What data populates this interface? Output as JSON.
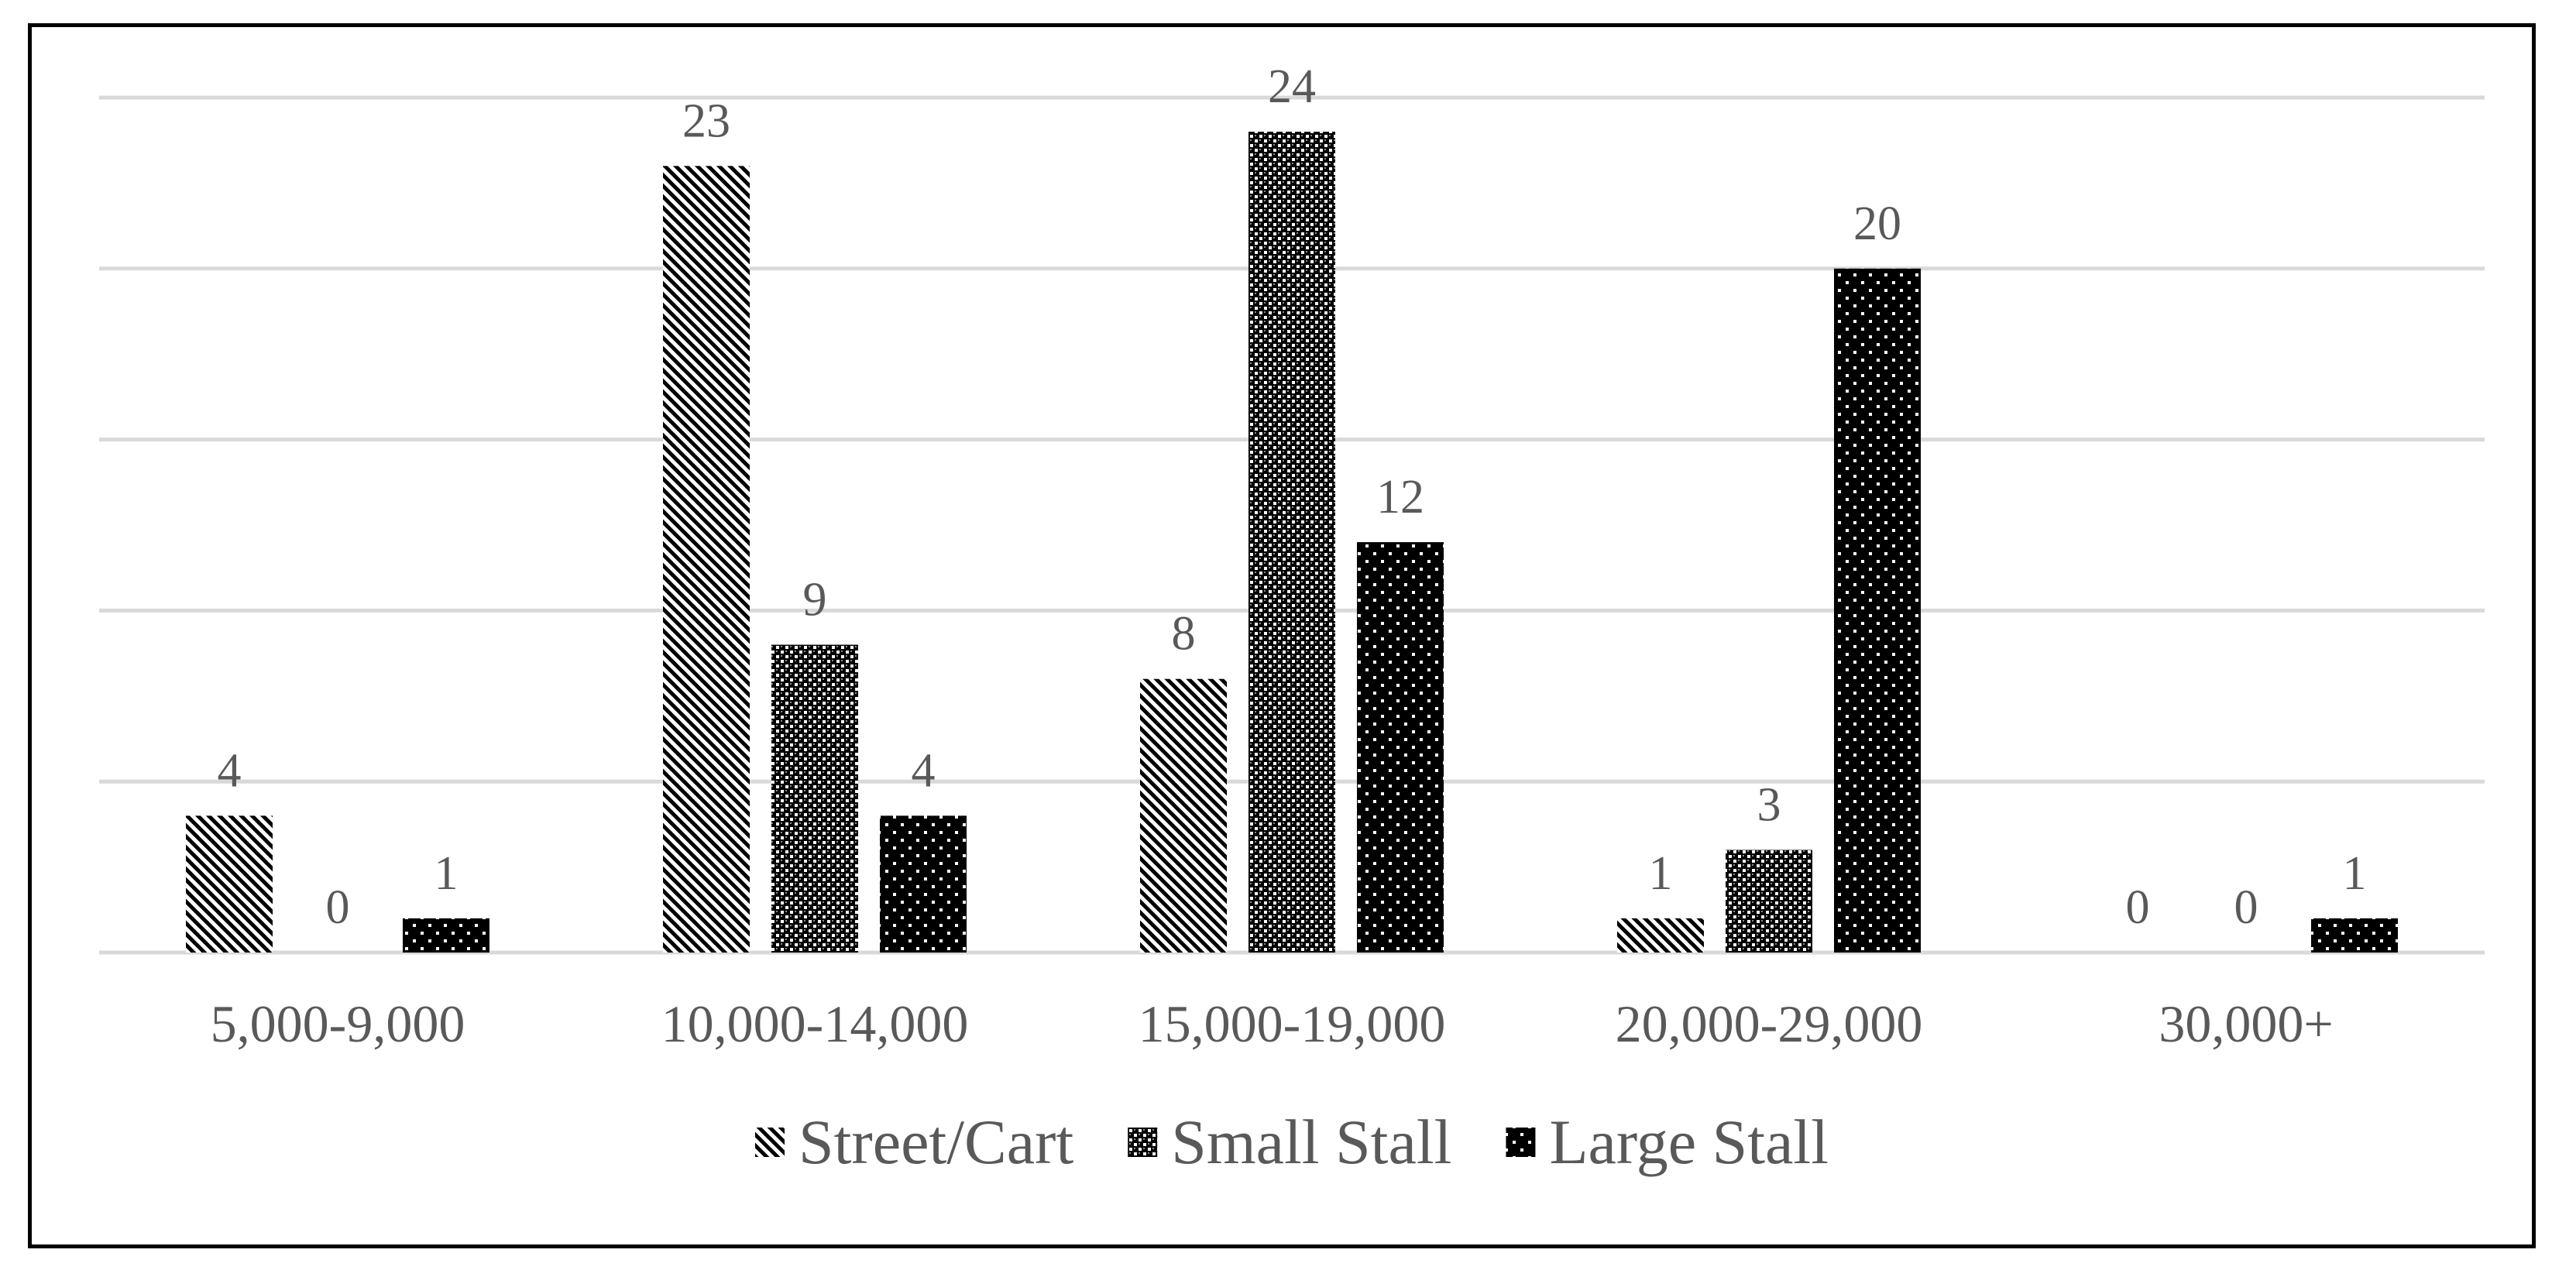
{
  "chart_data": {
    "type": "bar",
    "title": "",
    "xlabel": "",
    "ylabel": "",
    "categories": [
      "5,000-9,000",
      "10,000-14,000",
      "15,000-19,000",
      "20,000-29,000",
      "30,000+"
    ],
    "series": [
      {
        "name": "Street/Cart",
        "values": [
          4,
          23,
          8,
          1,
          0
        ],
        "pattern": "diagonal-stripes"
      },
      {
        "name": "Small Stall",
        "values": [
          0,
          9,
          24,
          3,
          0
        ],
        "pattern": "checker-dots"
      },
      {
        "name": "Large Stall",
        "values": [
          1,
          4,
          12,
          20,
          1
        ],
        "pattern": "white-dots-on-black"
      }
    ],
    "ylim": [
      0,
      25
    ],
    "gridline_step": 5,
    "grid": true,
    "y_tick_labels_visible": false,
    "data_labels": true,
    "legend_position": "bottom"
  },
  "colors": {
    "bar_fill": "#000000",
    "pattern_light": "#ffffff",
    "gridline": "#d9d9d9",
    "text": "#595959",
    "frame": "#000000"
  }
}
